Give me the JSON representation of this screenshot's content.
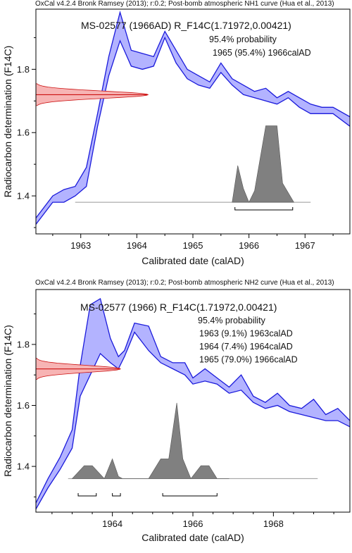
{
  "chart_data": [
    {
      "type": "line",
      "header": "OxCal v4.2.4 Bronk Ramsey (2013); r:0.2; Post-bomb atmospheric NH1 curve (Hua et al., 2013)",
      "title": "MS-02577 (1966AD) R_F14C(1.71972,0.00421)",
      "annotations": [
        "95.4% probability",
        "1965 (95.4%) 1966calAD"
      ],
      "xlabel": "Calibrated date (calAD)",
      "ylabel": "Radiocarbon determination (F14C)",
      "xlim": [
        1962.2,
        1967.8
      ],
      "ylim": [
        1.28,
        1.99
      ],
      "xticks": [
        1963,
        1964,
        1965,
        1966,
        1967
      ],
      "yticks": [
        1.4,
        1.6,
        1.8
      ],
      "curve_x": [
        1962.2,
        1962.5,
        1962.7,
        1962.9,
        1963.1,
        1963.3,
        1963.5,
        1963.7,
        1963.9,
        1964.1,
        1964.3,
        1964.5,
        1964.7,
        1964.9,
        1965.1,
        1965.3,
        1965.5,
        1965.7,
        1965.9,
        1966.1,
        1966.3,
        1966.5,
        1966.7,
        1966.9,
        1967.1,
        1967.3,
        1967.5,
        1967.8
      ],
      "curve_upper": [
        1.33,
        1.4,
        1.42,
        1.43,
        1.49,
        1.66,
        1.84,
        1.98,
        1.86,
        1.85,
        1.84,
        1.92,
        1.86,
        1.8,
        1.78,
        1.76,
        1.82,
        1.77,
        1.75,
        1.73,
        1.74,
        1.71,
        1.73,
        1.71,
        1.69,
        1.68,
        1.68,
        1.65
      ],
      "curve_lower": [
        1.31,
        1.38,
        1.38,
        1.4,
        1.43,
        1.62,
        1.78,
        1.89,
        1.81,
        1.8,
        1.81,
        1.9,
        1.82,
        1.77,
        1.75,
        1.74,
        1.79,
        1.75,
        1.72,
        1.71,
        1.7,
        1.69,
        1.71,
        1.68,
        1.66,
        1.66,
        1.66,
        1.62
      ],
      "measurement": {
        "mean": 1.71972,
        "sd": 0.00421
      },
      "posterior": {
        "baseline": 1.38,
        "x": [
          1965.7,
          1965.8,
          1965.9,
          1966.0,
          1966.1,
          1966.3,
          1966.5,
          1966.6,
          1966.8
        ],
        "rel_height": [
          0,
          0.48,
          0.18,
          0,
          0.15,
          1,
          1,
          0.25,
          0
        ]
      },
      "ranges_954": [
        [
          1965.75,
          1966.78
        ]
      ]
    },
    {
      "type": "line",
      "header": "OxCal v4.2.4 Bronk Ramsey (2013); r:0.2; Post-bomb atmospheric NH2 curve (Hua et al., 2013)",
      "title": "MS-02577 (1966) R_F14C(1.71972,0.00421)",
      "annotations": [
        "95.4% probability",
        "1963 (9.1%) 1963calAD",
        "1964 (7.4%) 1964calAD",
        "1965 (79.0%) 1966calAD"
      ],
      "xlabel": "Calibrated date (calAD)",
      "ylabel": "Radiocarbon determination (F14C)",
      "xlim": [
        1962.1,
        1969.9
      ],
      "ylim": [
        1.25,
        1.98
      ],
      "xticks": [
        1964,
        1966,
        1968
      ],
      "yticks": [
        1.4,
        1.6,
        1.8
      ],
      "curve_x": [
        1962.1,
        1962.4,
        1962.7,
        1963.0,
        1963.2,
        1963.45,
        1963.7,
        1963.95,
        1964.15,
        1964.3,
        1964.55,
        1964.9,
        1965.2,
        1965.5,
        1965.8,
        1966.0,
        1966.3,
        1966.6,
        1966.9,
        1967.2,
        1967.5,
        1967.8,
        1968.1,
        1968.4,
        1968.7,
        1969.0,
        1969.3,
        1969.6,
        1969.9
      ],
      "curve_upper": [
        1.28,
        1.36,
        1.43,
        1.52,
        1.73,
        1.93,
        1.95,
        1.82,
        1.76,
        1.78,
        1.87,
        1.86,
        1.76,
        1.74,
        1.74,
        1.69,
        1.72,
        1.69,
        1.66,
        1.7,
        1.63,
        1.61,
        1.64,
        1.6,
        1.59,
        1.62,
        1.57,
        1.59,
        1.55
      ],
      "curve_lower": [
        1.26,
        1.33,
        1.39,
        1.46,
        1.63,
        1.7,
        1.77,
        1.74,
        1.72,
        1.76,
        1.84,
        1.78,
        1.74,
        1.72,
        1.7,
        1.67,
        1.68,
        1.67,
        1.64,
        1.65,
        1.61,
        1.59,
        1.6,
        1.58,
        1.57,
        1.56,
        1.55,
        1.55,
        1.53
      ],
      "measurement": {
        "mean": 1.71972,
        "sd": 0.00421
      },
      "posterior": {
        "baseline": 1.36,
        "x": [
          1963.0,
          1963.3,
          1963.5,
          1963.8,
          1964.0,
          1964.15,
          1964.25,
          1964.9,
          1965.2,
          1965.4,
          1965.6,
          1965.75,
          1965.95,
          1966.2,
          1966.4,
          1966.6,
          1966.9
        ],
        "rel_height": [
          0,
          0.17,
          0.17,
          0,
          0.26,
          0.03,
          0,
          0,
          0.26,
          0.26,
          1,
          0.26,
          0,
          0.17,
          0.17,
          0,
          0
        ]
      },
      "ranges_954": [
        [
          1963.15,
          1963.6
        ],
        [
          1964.0,
          1964.2
        ],
        [
          1965.25,
          1966.6
        ]
      ]
    }
  ],
  "colors": {
    "curve_fill": "#b3b3ff",
    "curve_line": "#1a1adb",
    "measurement_fill": "#f7b4b4",
    "measurement_line": "#cc1111",
    "posterior_fill": "#808080",
    "posterior_line": "#555555",
    "axis": "#000000",
    "baseline": "#999999"
  }
}
